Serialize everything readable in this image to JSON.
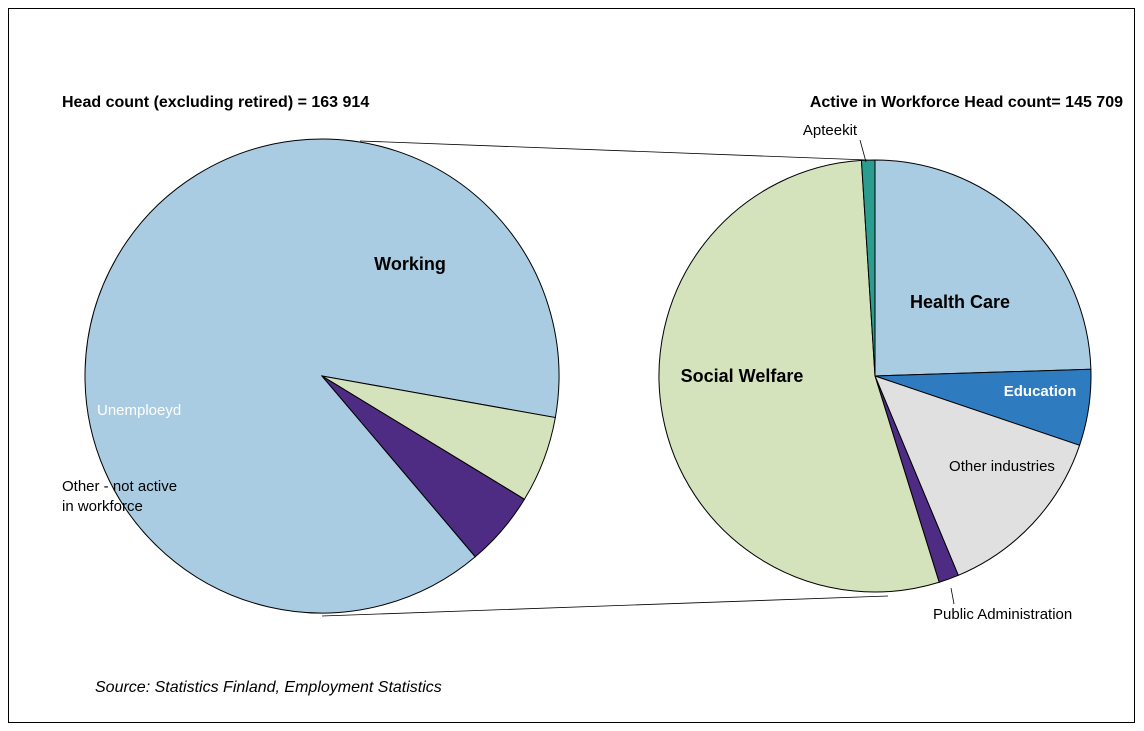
{
  "chart_data": [
    {
      "type": "pie",
      "title": "Head count (excluding retired) = 163 914",
      "slices": [
        {
          "label": "Working",
          "value": 89.0,
          "color": "#a9cce3",
          "bold": true,
          "label_color": "#000000"
        },
        {
          "label": "Other - not active in workforce",
          "value": 5.9,
          "color": "#d5e3bd",
          "bold": false,
          "label_color": "#000000"
        },
        {
          "label": "Unemploeyd",
          "value": 5.1,
          "color": "#4f2c83",
          "bold": false,
          "label_color": "#ffffff"
        }
      ]
    },
    {
      "type": "pie",
      "title": "Active in Workforce Head count= 145 709",
      "slices": [
        {
          "label": "Health Care",
          "value": 24.5,
          "color": "#a9cce3",
          "bold": true,
          "label_color": "#000000"
        },
        {
          "label": "Education",
          "value": 5.7,
          "color": "#2e7bc0",
          "bold": true,
          "label_color": "#ffffff"
        },
        {
          "label": "Other industries",
          "value": 13.5,
          "color": "#e0e0e0",
          "bold": false,
          "label_color": "#000000"
        },
        {
          "label": "Public Administration",
          "value": 1.5,
          "color": "#4f2c83",
          "bold": false,
          "label_color": "#000000"
        },
        {
          "label": "Social Welfare",
          "value": 53.8,
          "color": "#d5e3bd",
          "bold": true,
          "label_color": "#000000"
        },
        {
          "label": "Apteekit",
          "value": 1.0,
          "color": "#2a9d8f",
          "bold": false,
          "label_color": "#000000"
        }
      ]
    }
  ],
  "source": "Source: Statistics Finland, Employment Statistics"
}
